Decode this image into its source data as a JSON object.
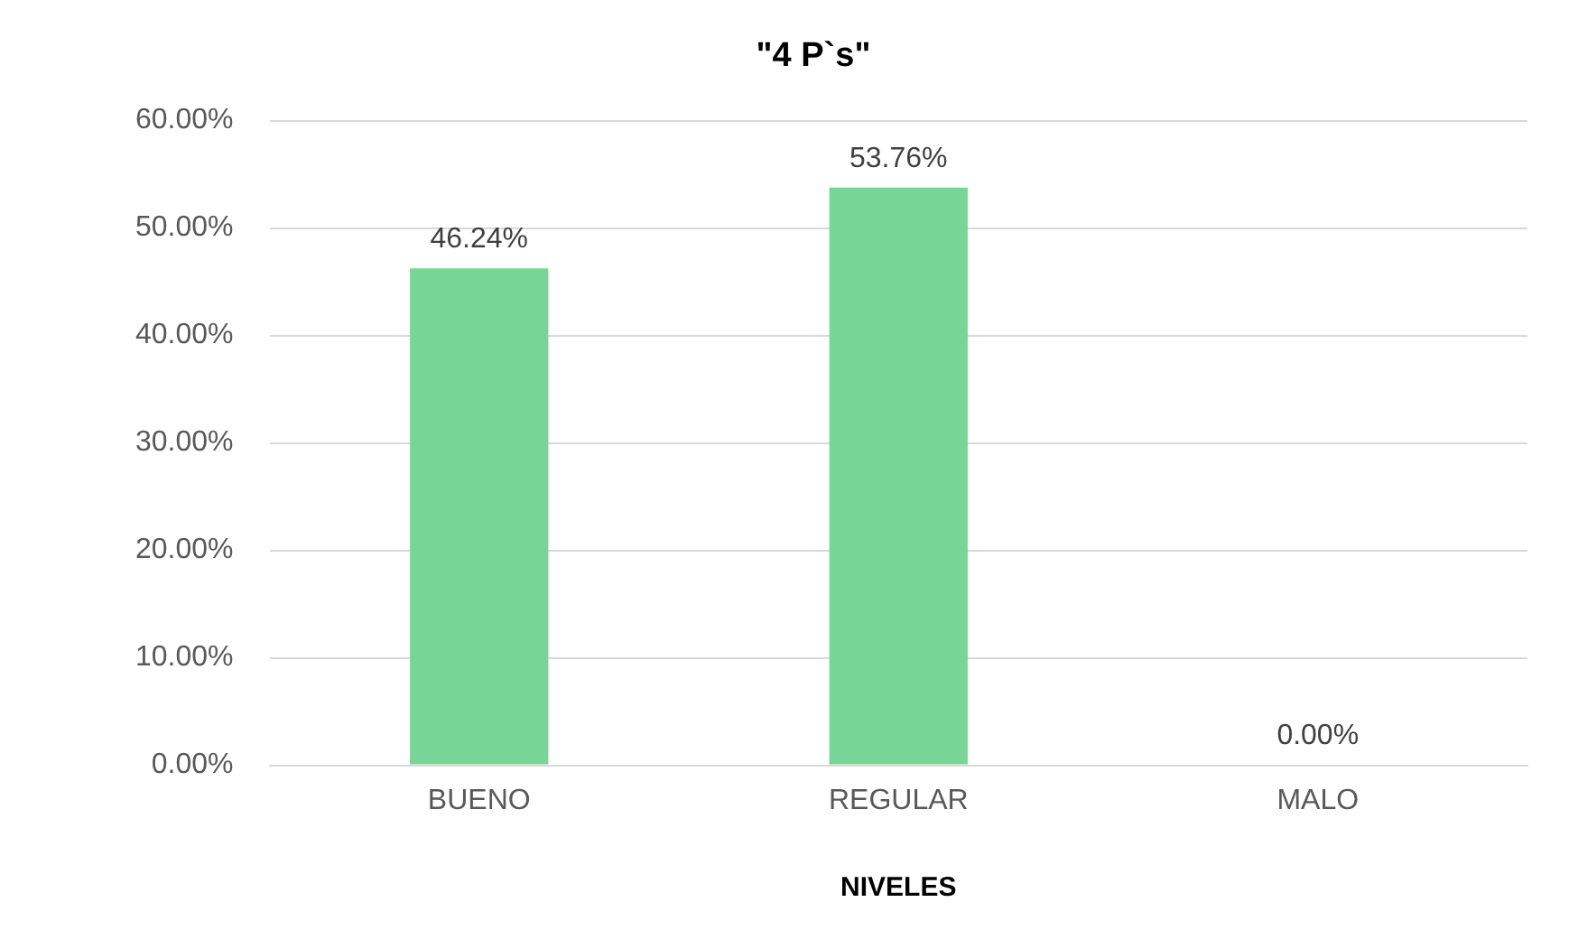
{
  "chart_data": {
    "type": "bar",
    "title": "\"4 P`s\"",
    "xlabel": "NIVELES",
    "categories": [
      "BUENO",
      "REGULAR",
      "MALO"
    ],
    "values": [
      46.24,
      53.76,
      0
    ],
    "value_labels": [
      "46.24%",
      "53.76%",
      "0.00%"
    ],
    "color": "#77d595",
    "ylim": [
      0,
      60
    ],
    "yticks": [
      {
        "value": 0,
        "label": "0.00%"
      },
      {
        "value": 10,
        "label": "10.00%"
      },
      {
        "value": 20,
        "label": "20.00%"
      },
      {
        "value": 30,
        "label": "30.00%"
      },
      {
        "value": 40,
        "label": "40.00%"
      },
      {
        "value": 50,
        "label": "50.00%"
      },
      {
        "value": 60,
        "label": "60.00%"
      }
    ],
    "grid": "y",
    "legend": false
  }
}
